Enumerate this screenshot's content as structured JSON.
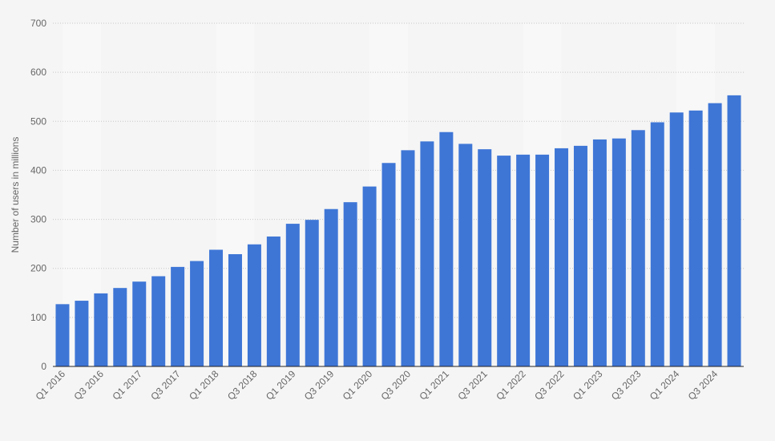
{
  "chart_data": {
    "type": "bar",
    "ylabel": "Number of users in millions",
    "xlabel": "",
    "ylim": [
      0,
      700
    ],
    "yticks": [
      0,
      100,
      200,
      300,
      400,
      500,
      600,
      700
    ],
    "grid": "horizontal dotted",
    "legend": "none",
    "bar_color": "#3e76d6",
    "background_band_color": "#f8f8f8",
    "categories": [
      "Q1 2016",
      "Q2 2016",
      "Q3 2016",
      "Q4 2016",
      "Q1 2017",
      "Q2 2017",
      "Q3 2017",
      "Q4 2017",
      "Q1 2018",
      "Q2 2018",
      "Q3 2018",
      "Q4 2018",
      "Q1 2019",
      "Q2 2019",
      "Q3 2019",
      "Q4 2019",
      "Q1 2020",
      "Q2 2020",
      "Q3 2020",
      "Q4 2020",
      "Q1 2021",
      "Q2 2021",
      "Q3 2021",
      "Q4 2021",
      "Q1 2022",
      "Q2 2022",
      "Q3 2022",
      "Q4 2022",
      "Q1 2023",
      "Q2 2023",
      "Q3 2023",
      "Q4 2023",
      "Q1 2024",
      "Q2 2024",
      "Q3 2024",
      "Q4 2024"
    ],
    "values": [
      127,
      134,
      149,
      160,
      173,
      184,
      203,
      215,
      238,
      229,
      249,
      265,
      291,
      299,
      321,
      335,
      367,
      415,
      441,
      459,
      478,
      454,
      443,
      430,
      432,
      432,
      445,
      450,
      463,
      465,
      482,
      498,
      518,
      522,
      537,
      553
    ],
    "xtick_labels": [
      "Q1 2016",
      "Q3 2016",
      "Q1 2017",
      "Q3 2017",
      "Q1 2018",
      "Q3 2018",
      "Q1 2019",
      "Q3 2019",
      "Q1 2020",
      "Q3 2020",
      "Q1 2021",
      "Q3 2021",
      "Q1 2022",
      "Q3 2022",
      "Q1 2023",
      "Q3 2023",
      "Q1 2024",
      "Q3 2024"
    ]
  }
}
